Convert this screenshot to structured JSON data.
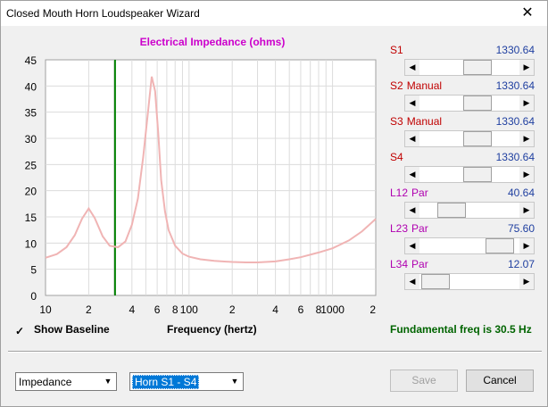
{
  "window": {
    "title": "Closed Mouth Horn Loudspeaker Wizard",
    "close_glyph": "✕"
  },
  "chart_title": "Electrical Impedance (ohms)",
  "x_axis_label": "Frequency (hertz)",
  "show_baseline": {
    "label": "Show Baseline",
    "checked": true,
    "check_glyph": "✓"
  },
  "fundamental_text": "Fundamental freq is 30.5 Hz",
  "params": [
    {
      "name": "S1",
      "sub": "",
      "value": "1330.64",
      "position": 0.61
    },
    {
      "name": "S2",
      "sub": "Manual",
      "value": "1330.64",
      "position": 0.61
    },
    {
      "name": "S3",
      "sub": "Manual",
      "value": "1330.64",
      "position": 0.61
    },
    {
      "name": "S4",
      "sub": "",
      "value": "1330.64",
      "position": 0.61
    },
    {
      "name": "L12",
      "sub": "Par",
      "value": "40.64",
      "position": 0.25
    },
    {
      "name": "L23",
      "sub": "Par",
      "value": "75.60",
      "position": 0.93
    },
    {
      "name": "L34",
      "sub": "Par",
      "value": "12.07",
      "position": 0.03
    }
  ],
  "bottom": {
    "view_select": "Impedance",
    "mode_select": "Horn S1 - S4",
    "save_label": "Save",
    "cancel_label": "Cancel"
  },
  "chart_data": {
    "type": "line",
    "title": "Electrical Impedance (ohms)",
    "xlabel": "Frequency (hertz)",
    "ylabel": "",
    "xscale": "log",
    "xlim": [
      10,
      2000
    ],
    "ylim": [
      0,
      45
    ],
    "yticks": [
      0,
      5,
      10,
      15,
      20,
      25,
      30,
      35,
      40,
      45
    ],
    "xtick_values": [
      10,
      20,
      40,
      60,
      80,
      100,
      200,
      400,
      600,
      800,
      1000,
      2000
    ],
    "xtick_labels": [
      "10",
      "2",
      "4",
      "6",
      "8",
      "100",
      "2",
      "4",
      "6",
      "8",
      "1000",
      "2"
    ],
    "grid": true,
    "marker_line": {
      "x": 30.5,
      "color": "#008000"
    },
    "series": [
      {
        "color": "#f0b4b4",
        "x": [
          10,
          12,
          14,
          16,
          18,
          20,
          22,
          25,
          28,
          32,
          36,
          40,
          44,
          48,
          52,
          55,
          58,
          61,
          64,
          68,
          72,
          80,
          90,
          100,
          120,
          150,
          200,
          250,
          300,
          400,
          500,
          600,
          800,
          1000,
          1300,
          1600,
          2000
        ],
        "values": [
          7.2,
          7.9,
          9.2,
          11.5,
          14.7,
          16.6,
          14.8,
          11.3,
          9.5,
          9.2,
          10.3,
          13.5,
          18.5,
          26.5,
          35.5,
          41.8,
          39.0,
          31.0,
          22.0,
          16.0,
          12.5,
          9.5,
          8.0,
          7.4,
          6.9,
          6.6,
          6.4,
          6.3,
          6.3,
          6.5,
          6.9,
          7.3,
          8.2,
          9.0,
          10.5,
          12.2,
          14.6
        ]
      }
    ]
  }
}
